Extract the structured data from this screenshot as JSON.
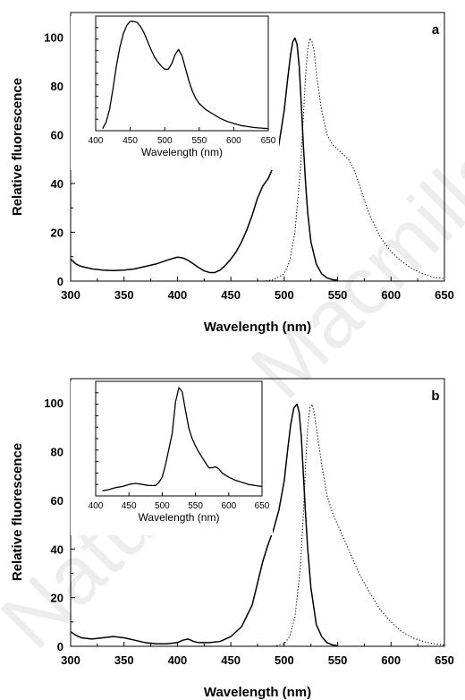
{
  "watermark": "Nature © Macmillan",
  "chart_data": [
    {
      "type": "line",
      "panel_label": "a",
      "xlabel": "Wavelength (nm)",
      "ylabel": "Relative fluorescence",
      "xlim": [
        300,
        650
      ],
      "ylim": [
        0,
        110
      ],
      "xticks": [
        "300",
        "350",
        "400",
        "450",
        "500",
        "550",
        "600",
        "650"
      ],
      "yticks": [
        "0",
        "20",
        "40",
        "60",
        "80",
        "100"
      ],
      "series": [
        {
          "style": "solid",
          "x": [
            300,
            305,
            310,
            320,
            330,
            340,
            350,
            360,
            370,
            380,
            390,
            395,
            400,
            405,
            410,
            415,
            420,
            425,
            430,
            435,
            440,
            445,
            450,
            455,
            460,
            465,
            470,
            475,
            480,
            485,
            490,
            495,
            500,
            503,
            506,
            508,
            510,
            512,
            514,
            516,
            518,
            520,
            522,
            525,
            530,
            535,
            540,
            545,
            550
          ],
          "y": [
            9,
            7,
            6,
            5,
            4.5,
            4.3,
            4.5,
            5,
            6,
            7,
            8.5,
            9.2,
            9.8,
            9.5,
            8.5,
            7,
            5.5,
            4.2,
            3.5,
            3.5,
            4.5,
            6.5,
            9,
            12,
            16,
            21,
            27,
            34,
            39,
            42,
            47,
            56,
            70,
            82,
            93,
            98,
            99.5,
            97,
            88,
            72,
            55,
            40,
            28,
            16,
            7,
            3,
            1.3,
            0.6,
            0.3
          ]
        },
        {
          "style": "dotted",
          "x": [
            480,
            490,
            500,
            505,
            510,
            515,
            518,
            520,
            522,
            524,
            526,
            528,
            530,
            535,
            540,
            545,
            550,
            555,
            560,
            565,
            570,
            575,
            580,
            590,
            600,
            610,
            620,
            630,
            640,
            650
          ],
          "y": [
            0,
            0.5,
            3,
            8,
            20,
            45,
            68,
            85,
            95,
            99.5,
            98,
            94,
            85,
            70,
            60,
            56,
            54,
            52,
            50,
            46,
            40,
            33,
            27,
            18,
            12,
            8,
            5,
            3,
            1.5,
            1
          ]
        }
      ],
      "inset": {
        "xlabel": "Wavelength (nm)",
        "xlim": [
          400,
          650
        ],
        "ylim": [
          0,
          110
        ],
        "xticks": [
          "400",
          "450",
          "500",
          "550",
          "600",
          "650"
        ],
        "series": [
          {
            "style": "solid",
            "x": [
              410,
              415,
              420,
              425,
              430,
              435,
              440,
              445,
              450,
              455,
              460,
              465,
              470,
              475,
              480,
              485,
              490,
              495,
              500,
              505,
              510,
              515,
              520,
              525,
              530,
              535,
              540,
              545,
              550,
              560,
              570,
              580,
              590,
              600,
              610,
              620,
              630,
              640,
              650
            ],
            "y": [
              2,
              8,
              20,
              40,
              62,
              80,
              93,
              101,
              105,
              105,
              104,
              100,
              94,
              86,
              78,
              71,
              66,
              62,
              59,
              59,
              64,
              73,
              78,
              72,
              60,
              48,
              38,
              31,
              26,
              20,
              16,
              12,
              9,
              7,
              5,
              4,
              3,
              2.5,
              2
            ]
          }
        ]
      }
    },
    {
      "type": "line",
      "panel_label": "b",
      "xlabel": "Wavelength (nm)",
      "ylabel": "Relative fluorescence",
      "xlim": [
        300,
        650
      ],
      "ylim": [
        0,
        110
      ],
      "xticks": [
        "300",
        "350",
        "400",
        "450",
        "500",
        "550",
        "600",
        "650"
      ],
      "yticks": [
        "0",
        "20",
        "40",
        "60",
        "80",
        "100"
      ],
      "series": [
        {
          "style": "solid",
          "x": [
            300,
            305,
            310,
            320,
            330,
            340,
            350,
            360,
            370,
            380,
            390,
            400,
            405,
            410,
            415,
            420,
            430,
            440,
            450,
            460,
            470,
            475,
            480,
            485,
            490,
            495,
            500,
            503,
            506,
            509,
            512,
            514,
            516,
            518,
            520,
            522,
            525,
            530,
            535,
            540,
            545,
            550
          ],
          "y": [
            6,
            4.5,
            3.5,
            3,
            3.5,
            4,
            3.5,
            2.5,
            1.5,
            1,
            1,
            1.5,
            2.5,
            3,
            2,
            1.5,
            1.5,
            2,
            4,
            8,
            17,
            26,
            35,
            42,
            48,
            56,
            68,
            80,
            91,
            98,
            99.5,
            96,
            86,
            70,
            54,
            40,
            24,
            9,
            4,
            1.5,
            0.6,
            0.2
          ]
        },
        {
          "style": "dotted",
          "x": [
            490,
            500,
            505,
            510,
            515,
            518,
            520,
            522,
            524,
            526,
            528,
            530,
            535,
            540,
            545,
            550,
            555,
            560,
            570,
            580,
            590,
            600,
            610,
            620,
            630,
            640,
            650
          ],
          "y": [
            0,
            1,
            4,
            12,
            32,
            55,
            75,
            90,
            98,
            99.5,
            96,
            90,
            75,
            62,
            55,
            50,
            45,
            40,
            30,
            22,
            15,
            10,
            6,
            3.5,
            2,
            1,
            0.5
          ]
        }
      ],
      "inset": {
        "xlabel": "Wavelength (nm)",
        "xlim": [
          400,
          650
        ],
        "ylim": [
          0,
          110
        ],
        "xticks": [
          "400",
          "450",
          "500",
          "550",
          "600",
          "650"
        ],
        "series": [
          {
            "style": "solid",
            "x": [
              410,
              420,
              430,
              440,
              450,
              460,
              470,
              480,
              490,
              495,
              500,
              505,
              510,
              515,
              520,
              525,
              530,
              535,
              540,
              545,
              550,
              555,
              560,
              565,
              570,
              575,
              580,
              585,
              590,
              600,
              610,
              620,
              630,
              640,
              650
            ],
            "y": [
              5,
              6,
              8,
              9,
              11,
              12,
              11,
              10,
              10,
              13,
              18,
              30,
              45,
              60,
              90,
              104,
              100,
              82,
              65,
              55,
              48,
              42,
              37,
              32,
              27,
              27,
              28,
              26,
              22,
              18,
              15,
              13,
              11,
              10,
              9
            ]
          }
        ]
      }
    }
  ]
}
